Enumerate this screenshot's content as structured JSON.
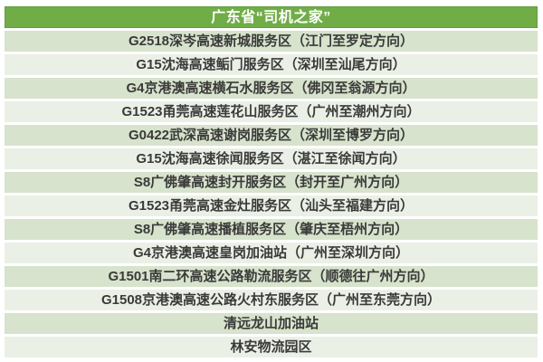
{
  "table": {
    "title": "广东省“司机之家”",
    "rows": [
      "G2518深岑高速新城服务区（江门至罗定方向）",
      "G15沈海高速鲘门服务区（深圳至汕尾方向）",
      "G4京港澳高速横石水服务区（佛冈至翁源方向）",
      "G1523甬莞高速莲花山服务区（广州至潮州方向）",
      "G0422武深高速谢岗服务区（深圳至博罗方向）",
      "G15沈海高速徐闻服务区（湛江至徐闻方向）",
      "S8广佛肇高速封开服务区（封开至广州方向）",
      "G1523甬莞高速金灶服务区（汕头至福建方向）",
      "S8广佛肇高速播植服务区（肇庆至梧州方向）",
      "G4京港澳高速皇岗加油站（广州至深圳方向）",
      "G1501南二环高速公路勒流服务区（顺德往广州方向）",
      "G1508京港澳高速公路火村东服务区（广州至东莞方向）",
      "清远龙山加油站",
      "林安物流园区"
    ]
  },
  "colors": {
    "header_bg": "#70ad47",
    "header_border": "#639a3e",
    "header_text": "#ffffff",
    "row_odd_bg": "#d7e3cc",
    "row_even_bg": "#eaf0e6",
    "row_text": "#3a3a3a"
  }
}
